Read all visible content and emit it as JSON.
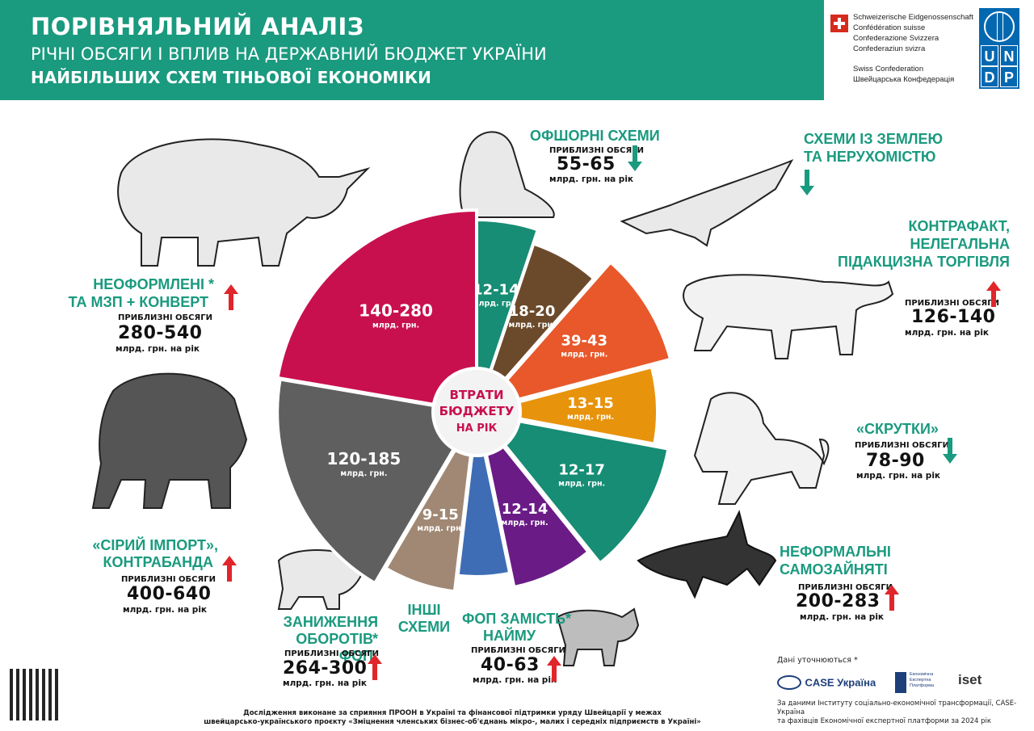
{
  "header": {
    "title": "ПОРІВНЯЛЬНИЙ АНАЛІЗ",
    "subtitle": "РІЧНІ ОБСЯГИ І ВПЛИВ НА ДЕРЖАВНИЙ БЮДЖЕТ УКРАЇНИ",
    "subtitle2": "НАЙБІЛЬШИХ СХЕМ ТІНЬОВОЇ ЕКОНОМІКИ"
  },
  "swiss": {
    "lines": [
      "Schweizerische Eidgenossenschaft",
      "Confédération suisse",
      "Confederazione Svizzera",
      "Confederaziun svizra",
      "Swiss Confederation",
      "Швейцарська Конфедерація"
    ]
  },
  "undp": {
    "letters": [
      "U",
      "N",
      "D",
      "P"
    ]
  },
  "colors": {
    "teal": "#1a9a7f",
    "red_arrow": "#e0262b"
  },
  "schemes": {
    "unregistered": {
      "label1": "НЕОФОРМЛЕНІ *",
      "label2": "ТА МЗП + КОНВЕРТ",
      "approx": "ПРИБЛИЗНІ ОБСЯГИ",
      "value": "280-540",
      "unit": "млрд. грн. на рік",
      "trend": "up"
    },
    "offshore": {
      "label1": "ОФШОРНІ СХЕМИ",
      "approx": "ПРИБЛИЗНІ ОБСЯГИ",
      "value": "55-65",
      "unit": "млрд. грн. на рік",
      "trend": "down"
    },
    "land": {
      "label1": "СХЕМИ ІЗ ЗЕМЛЕЮ",
      "label2": "ТА НЕРУХОМІСТЮ",
      "trend": "down"
    },
    "counterfeit": {
      "label1": "КОНТРАФАКТ,",
      "label2": "НЕЛЕГАЛЬНА",
      "label3": "ПІДАКЦИЗНА ТОРГІВЛЯ",
      "approx": "ПРИБЛИЗНІ ОБСЯГИ",
      "value": "126-140",
      "unit": "млрд. грн. на рік",
      "trend": "up"
    },
    "twists": {
      "label1": "«СКРУТКИ»",
      "approx": "ПРИБЛИЗНІ ОБСЯГИ",
      "value": "78-90",
      "unit": "млрд. грн. на рік",
      "trend": "down"
    },
    "informal": {
      "label1": "НЕФОРМАЛЬНІ",
      "label2": "САМОЗАЙНЯТІ",
      "approx": "ПРИБЛИЗНІ ОБСЯГИ",
      "value": "200-283",
      "unit": "млрд. грн. на рік",
      "trend": "up"
    },
    "gray_import": {
      "label1": "«СІРИЙ ІМПОРТ»,",
      "label2": "КОНТРАБАНДА",
      "approx": "ПРИБЛИЗНІ ОБСЯГИ",
      "value": "400-640",
      "unit": "млрд. грн. на рік",
      "trend": "up"
    },
    "fop_turnover": {
      "label1": "ЗАНИЖЕННЯ *",
      "label2": "ОБОРОТІВ ФОП",
      "approx": "ПРИБЛИЗНІ ОБСЯГИ",
      "value": "264-300",
      "unit": "млрд. грн. на рік",
      "trend": "up"
    },
    "other": {
      "label1": "ІНШІ",
      "label2": "СХЕМИ"
    },
    "fop_hire": {
      "label1": "ФОП ЗАМІСТЬ*",
      "label2": "НАЙМУ",
      "approx": "ПРИБЛИЗНІ ОБСЯГИ",
      "value": "40-63",
      "unit": "млрд. грн. на рік",
      "trend": "up"
    }
  },
  "chart_data": {
    "type": "pie",
    "center_label": [
      "ВТРАТИ",
      "БЮДЖЕТУ",
      "НА РІК"
    ],
    "slice_unit": "млрд. грн.",
    "slices": [
      {
        "scheme": "offshore",
        "label": "12-14",
        "value": 13,
        "color": "#168d74"
      },
      {
        "scheme": "land",
        "label": "18-20",
        "value": 19,
        "color": "#6b4a2b"
      },
      {
        "scheme": "counterfeit",
        "label": "39-43",
        "value": 41,
        "color": "#e8582a"
      },
      {
        "scheme": "twists",
        "label": "13-15",
        "value": 14,
        "color": "#e8930c"
      },
      {
        "scheme": "informal",
        "label": "12-17",
        "value": 14.5,
        "color": "#168d74"
      },
      {
        "scheme": "fop_hire",
        "label": "12-14",
        "value": 13,
        "color": "#6a1b86"
      },
      {
        "scheme": "other",
        "label": "",
        "value": 8,
        "color": "#3f6db5"
      },
      {
        "scheme": "fop_turnover",
        "label": "9-15",
        "value": 12,
        "color": "#a08874"
      },
      {
        "scheme": "gray_import",
        "label": "120-185",
        "value": 152.5,
        "color": "#5f5f5f"
      },
      {
        "scheme": "unregistered",
        "label": "140-280",
        "value": 210,
        "color": "#c8104f"
      }
    ]
  },
  "footer": {
    "line1": "Дослідження виконане за сприяння ПРООН в Україні та фінансової підтримки уряду Швейцарії у межах",
    "line2": "швейцарсько-українського проєкту «Зміцнення членських бізнес-об'єднань мікро-, малих і середніх підприємств в Україні»",
    "refine": "Дані уточнюються *",
    "source1": "За даними Інституту соціально-економічної трансформації, CASE-Україна",
    "source2": "та фахівців Економічної експертної платформи за 2024 рік",
    "logo_case": "CASE Україна",
    "logo_eep1": "Економічна",
    "logo_eep2": "Експертна",
    "logo_eep3": "Платформа",
    "logo_iset": "iset"
  }
}
